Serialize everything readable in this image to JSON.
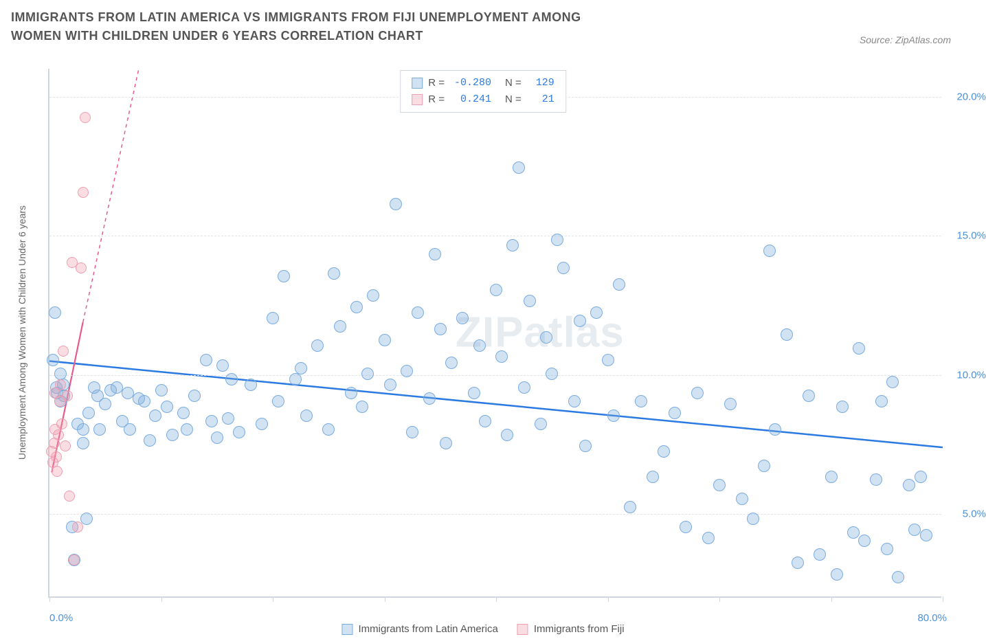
{
  "title": "IMMIGRANTS FROM LATIN AMERICA VS IMMIGRANTS FROM FIJI UNEMPLOYMENT AMONG WOMEN WITH CHILDREN UNDER 6 YEARS CORRELATION CHART",
  "source_label": "Source: ZipAtlas.com",
  "watermark": "ZIPatlas",
  "ylabel": "Unemployment Among Women with Children Under 6 years",
  "chart": {
    "type": "scatter",
    "xlim": [
      0,
      80
    ],
    "ylim": [
      2,
      21
    ],
    "x_tick_positions": [
      0,
      10,
      20,
      30,
      40,
      50,
      60,
      70,
      80
    ],
    "x_tick_labels": [
      "0.0%",
      "",
      "",
      "",
      "",
      "",
      "",
      "",
      "80.0%"
    ],
    "y_tick_positions": [
      5,
      10,
      15,
      20
    ],
    "y_tick_labels": [
      "5.0%",
      "10.0%",
      "15.0%",
      "20.0%"
    ],
    "background_color": "#ffffff",
    "grid_color": "#e2e6ea",
    "axis_color": "#cfd6dd",
    "series_a": {
      "name": "Immigrants from Latin America",
      "color_fill": "rgba(122,172,222,0.35)",
      "color_stroke": "#7aacde",
      "R": "-0.280",
      "N": "129",
      "trend_color": "#2a7ae2",
      "trend": {
        "x1": 0,
        "y1": 10.5,
        "x2": 80,
        "y2": 7.4
      },
      "points": [
        [
          0.3,
          10.5
        ],
        [
          0.5,
          12.2
        ],
        [
          0.6,
          9.5
        ],
        [
          0.7,
          9.3
        ],
        [
          1,
          10.0
        ],
        [
          1,
          9.0
        ],
        [
          1.2,
          9.6
        ],
        [
          1.3,
          9.2
        ],
        [
          2,
          4.5
        ],
        [
          2.2,
          3.3
        ],
        [
          2.5,
          8.2
        ],
        [
          3,
          8.0
        ],
        [
          3,
          7.5
        ],
        [
          3.3,
          4.8
        ],
        [
          3.5,
          8.6
        ],
        [
          4,
          9.5
        ],
        [
          4.3,
          9.2
        ],
        [
          4.5,
          8.0
        ],
        [
          5,
          8.9
        ],
        [
          5.5,
          9.4
        ],
        [
          6,
          9.5
        ],
        [
          6.5,
          8.3
        ],
        [
          7,
          9.3
        ],
        [
          7.2,
          8.0
        ],
        [
          8,
          9.1
        ],
        [
          8.5,
          9.0
        ],
        [
          9,
          7.6
        ],
        [
          9.5,
          8.5
        ],
        [
          10,
          9.4
        ],
        [
          10.5,
          8.8
        ],
        [
          11,
          7.8
        ],
        [
          12,
          8.6
        ],
        [
          12.3,
          8.0
        ],
        [
          13,
          9.2
        ],
        [
          14,
          10.5
        ],
        [
          14.5,
          8.3
        ],
        [
          15,
          7.7
        ],
        [
          15.5,
          10.3
        ],
        [
          16,
          8.4
        ],
        [
          16.3,
          9.8
        ],
        [
          17,
          7.9
        ],
        [
          18,
          9.6
        ],
        [
          19,
          8.2
        ],
        [
          20,
          12.0
        ],
        [
          20.5,
          9.0
        ],
        [
          21,
          13.5
        ],
        [
          22,
          9.8
        ],
        [
          22.5,
          10.2
        ],
        [
          23,
          8.5
        ],
        [
          24,
          11.0
        ],
        [
          25,
          8.0
        ],
        [
          25.5,
          13.6
        ],
        [
          26,
          11.7
        ],
        [
          27,
          9.3
        ],
        [
          27.5,
          12.4
        ],
        [
          28,
          8.8
        ],
        [
          28.5,
          10.0
        ],
        [
          29,
          12.8
        ],
        [
          30,
          11.2
        ],
        [
          30.5,
          9.6
        ],
        [
          31,
          16.1
        ],
        [
          32,
          10.1
        ],
        [
          32.5,
          7.9
        ],
        [
          33,
          12.2
        ],
        [
          34,
          9.1
        ],
        [
          34.5,
          14.3
        ],
        [
          35,
          11.6
        ],
        [
          35.5,
          7.5
        ],
        [
          36,
          10.4
        ],
        [
          37,
          12.0
        ],
        [
          38,
          9.3
        ],
        [
          38.5,
          11.0
        ],
        [
          39,
          8.3
        ],
        [
          40,
          13.0
        ],
        [
          40.5,
          10.6
        ],
        [
          41,
          7.8
        ],
        [
          41.5,
          14.6
        ],
        [
          42,
          17.4
        ],
        [
          42.5,
          9.5
        ],
        [
          43,
          12.6
        ],
        [
          44,
          8.2
        ],
        [
          44.5,
          11.3
        ],
        [
          45,
          10.0
        ],
        [
          45.5,
          14.8
        ],
        [
          46,
          13.8
        ],
        [
          47,
          9.0
        ],
        [
          47.5,
          11.9
        ],
        [
          48,
          7.4
        ],
        [
          49,
          12.2
        ],
        [
          50,
          10.5
        ],
        [
          50.5,
          8.5
        ],
        [
          51,
          13.2
        ],
        [
          52,
          5.2
        ],
        [
          53,
          9.0
        ],
        [
          54,
          6.3
        ],
        [
          55,
          7.2
        ],
        [
          56,
          8.6
        ],
        [
          57,
          4.5
        ],
        [
          58,
          9.3
        ],
        [
          59,
          4.1
        ],
        [
          60,
          6.0
        ],
        [
          61,
          8.9
        ],
        [
          62,
          5.5
        ],
        [
          63,
          4.8
        ],
        [
          64,
          6.7
        ],
        [
          64.5,
          14.4
        ],
        [
          65,
          8.0
        ],
        [
          66,
          11.4
        ],
        [
          67,
          3.2
        ],
        [
          68,
          9.2
        ],
        [
          69,
          3.5
        ],
        [
          70,
          6.3
        ],
        [
          70.5,
          2.8
        ],
        [
          71,
          8.8
        ],
        [
          72,
          4.3
        ],
        [
          72.5,
          10.9
        ],
        [
          73,
          4.0
        ],
        [
          74,
          6.2
        ],
        [
          74.5,
          9.0
        ],
        [
          75,
          3.7
        ],
        [
          75.5,
          9.7
        ],
        [
          76,
          2.7
        ],
        [
          77,
          6.0
        ],
        [
          77.5,
          4.4
        ],
        [
          78,
          6.3
        ],
        [
          78.5,
          4.2
        ]
      ]
    },
    "series_b": {
      "name": "Immigrants from Fiji",
      "color_fill": "rgba(239,158,176,0.35)",
      "color_stroke": "#ef9eb0",
      "R": "0.241",
      "N": "21",
      "trend_color": "#e85a8a",
      "trend_solid": {
        "x1": 0.2,
        "y1": 6.5,
        "x2": 3.0,
        "y2": 11.9
      },
      "trend_dash": {
        "x1": 3.0,
        "y1": 11.9,
        "x2": 8.0,
        "y2": 21.0
      },
      "points": [
        [
          0.2,
          7.2
        ],
        [
          0.3,
          6.8
        ],
        [
          0.4,
          7.5
        ],
        [
          0.5,
          8.0
        ],
        [
          0.5,
          9.3
        ],
        [
          0.6,
          7.0
        ],
        [
          0.7,
          6.5
        ],
        [
          0.8,
          7.8
        ],
        [
          0.9,
          9.0
        ],
        [
          1.0,
          9.6
        ],
        [
          1.1,
          8.2
        ],
        [
          1.2,
          10.8
        ],
        [
          1.4,
          7.4
        ],
        [
          1.6,
          9.2
        ],
        [
          1.8,
          5.6
        ],
        [
          2.0,
          14.0
        ],
        [
          2.2,
          3.3
        ],
        [
          2.5,
          4.5
        ],
        [
          2.8,
          13.8
        ],
        [
          3.0,
          16.5
        ],
        [
          3.2,
          19.2
        ]
      ]
    }
  },
  "legend_top": {
    "rows": [
      {
        "swatch": "a",
        "R_label": "R =",
        "R": "-0.280",
        "N_label": "N =",
        "N": "129"
      },
      {
        "swatch": "b",
        "R_label": "R =",
        "R": " 0.241",
        "N_label": "N =",
        "N": " 21"
      }
    ]
  },
  "legend_bottom": [
    {
      "swatch": "a",
      "label": "Immigrants from Latin America"
    },
    {
      "swatch": "b",
      "label": "Immigrants from Fiji"
    }
  ]
}
